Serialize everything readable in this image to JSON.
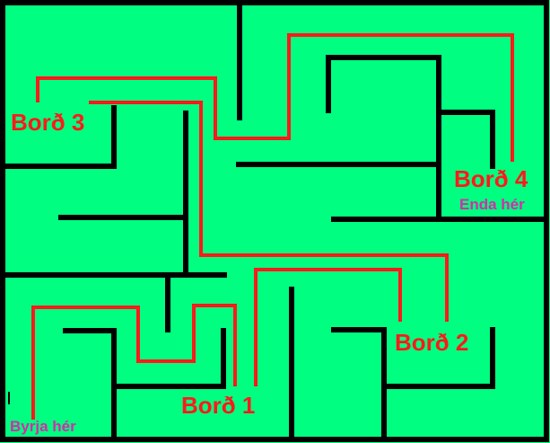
{
  "colors": {
    "background": "#00FF80",
    "wall": "#000000",
    "path": "#FF1A1A",
    "level_label": "#FF1A1A",
    "start_end_label": "#D62BAA"
  },
  "labels": {
    "level_1": "Borð 1",
    "level_2": "Borð 2",
    "level_3": "Borð 3",
    "level_4": "Borð 4",
    "start": "Byrja hér",
    "end": "Enda hér"
  }
}
